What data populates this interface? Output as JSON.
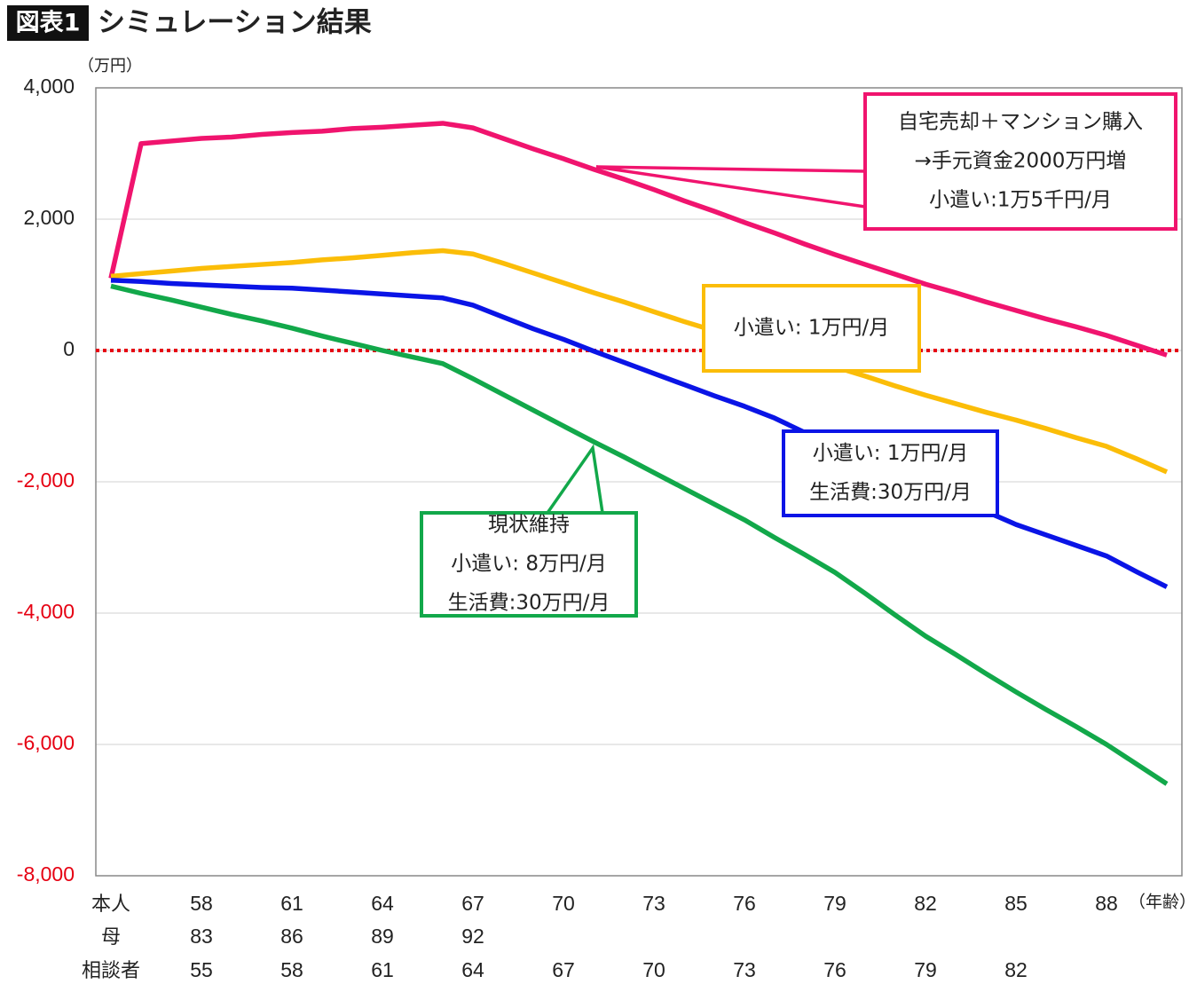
{
  "chart_data": {
    "type": "line",
    "badge": "図表1",
    "title": "シミュレーション結果",
    "y_unit": "（万円）",
    "x_unit": "（年齢）",
    "x": [
      55,
      56,
      57,
      58,
      59,
      60,
      61,
      62,
      63,
      64,
      65,
      66,
      67,
      68,
      69,
      70,
      71,
      72,
      73,
      74,
      75,
      76,
      77,
      78,
      79,
      80,
      81,
      82,
      83,
      84,
      85,
      86,
      87,
      88,
      89,
      90
    ],
    "xlim": [
      54.5,
      90.5
    ],
    "xticks": [
      58,
      61,
      64,
      67,
      70,
      73,
      76,
      79,
      82,
      85,
      88
    ],
    "x_rows": [
      {
        "name": "本人",
        "ticks": [
          58,
          61,
          64,
          67,
          70,
          73,
          76,
          79,
          82,
          85,
          88
        ]
      },
      {
        "name": "母",
        "ticks": [
          83,
          86,
          89,
          92
        ]
      },
      {
        "name": "相談者",
        "ticks": [
          55,
          58,
          61,
          64,
          67,
          70,
          73,
          76,
          79,
          82
        ]
      }
    ],
    "ylim": [
      -8000,
      4000
    ],
    "yticks": [
      {
        "value": 4000,
        "label": "4,000"
      },
      {
        "value": 2000,
        "label": "2,000"
      },
      {
        "value": 0,
        "label": "0"
      },
      {
        "value": -2000,
        "label": "-2,000"
      },
      {
        "value": -4000,
        "label": "-4,000"
      },
      {
        "value": -6000,
        "label": "-6,000"
      },
      {
        "value": -8000,
        "label": "-8,000"
      }
    ],
    "grid": true,
    "negative_tick_color": "#e60012",
    "zero_line": {
      "color": "#e60012",
      "style": "dotted"
    },
    "series": [
      {
        "color": "#f0146e",
        "annotation": [
          "自宅売却＋マンション購入",
          "→手元資金2000万円増",
          "小遣い:1万5千円/月"
        ],
        "values": [
          1100,
          3150,
          3190,
          3230,
          3250,
          3290,
          3320,
          3340,
          3380,
          3400,
          3430,
          3460,
          3390,
          3230,
          3070,
          2920,
          2760,
          2610,
          2450,
          2280,
          2120,
          1950,
          1790,
          1620,
          1460,
          1310,
          1160,
          1010,
          880,
          740,
          610,
          480,
          360,
          230,
          80,
          -70
        ]
      },
      {
        "color": "#fbbd08",
        "annotation": [
          "小遣い: 1万円/月"
        ],
        "values": [
          1130,
          1170,
          1210,
          1250,
          1280,
          1310,
          1340,
          1380,
          1410,
          1450,
          1490,
          1520,
          1470,
          1330,
          1180,
          1030,
          880,
          740,
          590,
          440,
          300,
          150,
          10,
          -120,
          -250,
          -390,
          -540,
          -680,
          -810,
          -940,
          -1060,
          -1190,
          -1330,
          -1460,
          -1650,
          -1850
        ]
      },
      {
        "color": "#0a14e6",
        "annotation": [
          "小遣い: 1万円/月",
          "生活費:30万円/月"
        ],
        "values": [
          1070,
          1050,
          1020,
          1000,
          980,
          960,
          950,
          920,
          890,
          860,
          830,
          800,
          690,
          510,
          330,
          170,
          -10,
          -180,
          -350,
          -520,
          -690,
          -850,
          -1030,
          -1250,
          -1450,
          -1650,
          -1850,
          -2050,
          -2250,
          -2450,
          -2650,
          -2810,
          -2970,
          -3130,
          -3370,
          -3600
        ]
      },
      {
        "color": "#12a84a",
        "annotation": [
          "現状維持",
          "小遣い: 8万円/月",
          "生活費:30万円/月"
        ],
        "values": [
          980,
          870,
          770,
          660,
          550,
          450,
          340,
          220,
          110,
          0,
          -100,
          -200,
          -430,
          -670,
          -910,
          -1150,
          -1390,
          -1620,
          -1860,
          -2100,
          -2340,
          -2580,
          -2850,
          -3110,
          -3380,
          -3700,
          -4030,
          -4350,
          -4630,
          -4920,
          -5200,
          -5470,
          -5730,
          -6000,
          -6300,
          -6600
        ]
      }
    ]
  }
}
